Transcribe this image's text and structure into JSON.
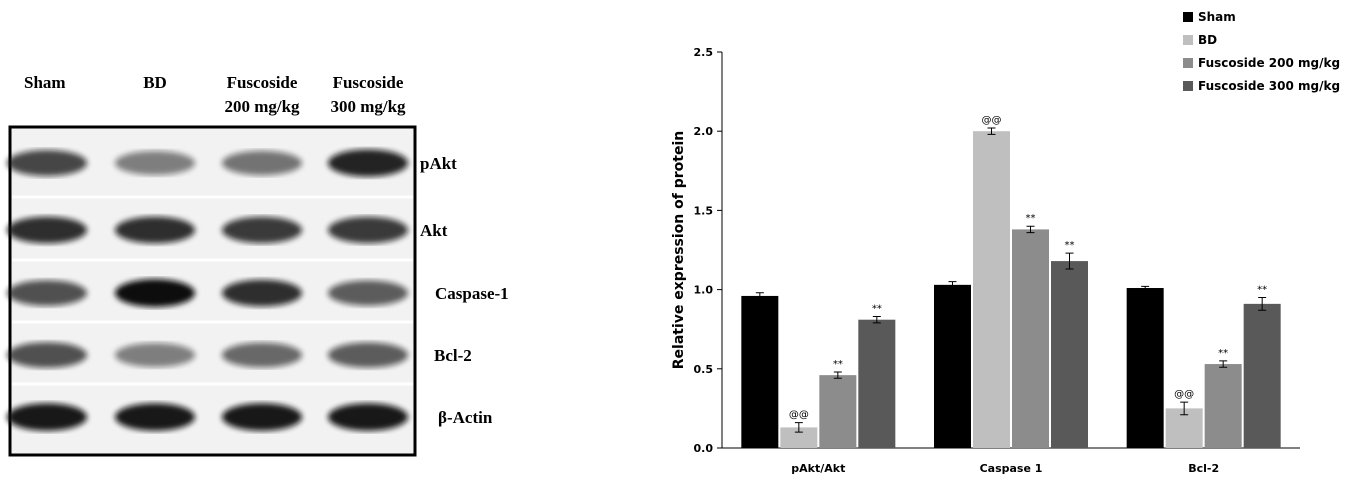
{
  "blot": {
    "columns": [
      [
        "Sham"
      ],
      [
        "BD"
      ],
      [
        "Fuscoside",
        "200 mg/kg"
      ],
      [
        "Fuscoside",
        "300 mg/kg"
      ]
    ],
    "rows": [
      "pAkt",
      "Akt",
      "Caspase-1",
      "Bcl-2",
      "β-Actin"
    ]
  },
  "chart_data": {
    "type": "bar",
    "ylabel": "Relative expression of protein",
    "categories": [
      "pAkt/Akt",
      "Caspase 1",
      "Bcl-2"
    ],
    "series": [
      {
        "name": "Sham",
        "color": "#000000",
        "values": [
          0.96,
          1.03,
          1.01
        ],
        "errors": [
          0.02,
          0.02,
          0.01
        ]
      },
      {
        "name": "BD",
        "color": "#bfbfbf",
        "values": [
          0.13,
          2.0,
          0.25
        ],
        "errors": [
          0.03,
          0.02,
          0.04
        ],
        "markers": [
          "@@",
          "@@",
          "@@"
        ]
      },
      {
        "name": "Fuscoside 200 mg/kg",
        "color": "#8c8c8c",
        "values": [
          0.46,
          1.38,
          0.53
        ],
        "errors": [
          0.02,
          0.02,
          0.02
        ],
        "markers": [
          "**",
          "**",
          "**"
        ]
      },
      {
        "name": "Fuscoside 300 mg/kg",
        "color": "#595959",
        "values": [
          0.81,
          1.18,
          0.91
        ],
        "errors": [
          0.02,
          0.05,
          0.04
        ],
        "markers": [
          "**",
          "**",
          "**"
        ]
      }
    ],
    "ylim": [
      0,
      2.5
    ],
    "yticks": [
      {
        "value": 0,
        "label": "0.0"
      },
      {
        "value": 0.5,
        "label": "0.5"
      },
      {
        "value": 1,
        "label": "1.0"
      },
      {
        "value": 1.5,
        "label": "1.5"
      },
      {
        "value": 2,
        "label": "2.0"
      },
      {
        "value": 2.5,
        "label": "2.5"
      }
    ],
    "legend": "top-right"
  }
}
